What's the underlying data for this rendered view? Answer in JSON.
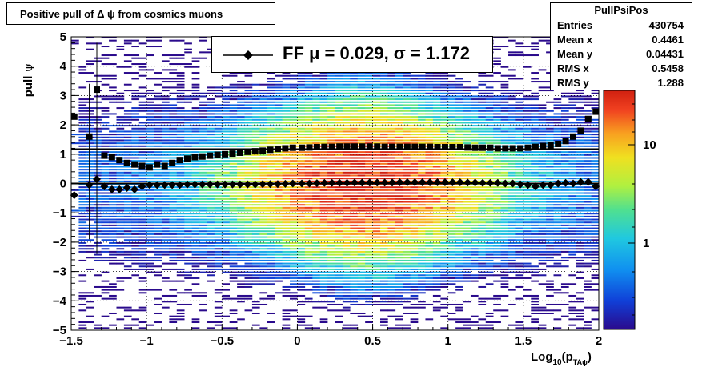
{
  "title": "Positive pull of Δ ψ from cosmics muons",
  "stats": {
    "name": "PullPsiPos",
    "rows": [
      {
        "label": "Entries",
        "value": "430754"
      },
      {
        "label": "Mean x",
        "value": "0.4461"
      },
      {
        "label": "Mean y",
        "value": "0.04431"
      },
      {
        "label": "RMS x",
        "value": "0.5458"
      },
      {
        "label": "RMS y",
        "value": "1.288"
      }
    ]
  },
  "legend": {
    "text": "FF μ =  0.029, σ =   1.172"
  },
  "chart_data": {
    "type": "heatmap",
    "title": "Positive pull of Δ ψ from cosmics muons",
    "xlabel": "Log10(pTAψ)",
    "ylabel": "pull ψ",
    "xlim": [
      -1.5,
      2.0
    ],
    "ylim": [
      -5,
      5
    ],
    "x_ticks": [
      "−1.5",
      "−1",
      "−0.5",
      "0",
      "0.5",
      "1",
      "1.5",
      "2"
    ],
    "y_ticks": [
      "5",
      "4",
      "3",
      "2",
      "1",
      "0",
      "−1",
      "−2",
      "−3",
      "−4",
      "−5"
    ],
    "colorbar_ticks": [
      "10",
      "1"
    ],
    "colorbar_scale": "log",
    "grid": true,
    "series": [
      {
        "marker": "diamond",
        "x": [
          -1.48,
          -1.38,
          -1.33,
          -1.28,
          -1.23,
          -1.18,
          -1.13,
          -1.08,
          -1.03,
          -0.98,
          -0.93,
          -0.88,
          -0.83,
          -0.78,
          -0.73,
          -0.68,
          -0.63,
          -0.58,
          -0.53,
          -0.48,
          -0.43,
          -0.38,
          -0.33,
          -0.28,
          -0.23,
          -0.18,
          -0.13,
          -0.08,
          -0.03,
          0.03,
          0.08,
          0.13,
          0.18,
          0.23,
          0.28,
          0.33,
          0.38,
          0.43,
          0.48,
          0.53,
          0.58,
          0.63,
          0.68,
          0.73,
          0.78,
          0.83,
          0.88,
          0.93,
          0.98,
          1.03,
          1.08,
          1.13,
          1.18,
          1.23,
          1.28,
          1.33,
          1.38,
          1.43,
          1.48,
          1.53,
          1.58,
          1.63,
          1.68,
          1.73,
          1.78,
          1.83,
          1.88,
          1.93,
          1.98
        ],
        "y": [
          -0.4,
          -0.05,
          0.15,
          -0.1,
          -0.2,
          -0.2,
          -0.15,
          -0.2,
          -0.1,
          -0.05,
          -0.05,
          -0.05,
          -0.05,
          -0.05,
          -0.03,
          -0.03,
          -0.03,
          -0.03,
          -0.03,
          -0.03,
          -0.03,
          -0.03,
          -0.03,
          -0.03,
          -0.02,
          -0.02,
          -0.02,
          -0.01,
          0.0,
          0.0,
          0.0,
          0.01,
          0.02,
          0.02,
          0.02,
          0.02,
          0.03,
          0.03,
          0.03,
          0.03,
          0.03,
          0.03,
          0.04,
          0.04,
          0.04,
          0.04,
          0.04,
          0.04,
          0.04,
          0.04,
          0.04,
          0.03,
          0.03,
          0.02,
          0.02,
          0.02,
          0.0,
          0.0,
          -0.03,
          -0.05,
          -0.1,
          -0.05,
          -0.05,
          0.0,
          0.02,
          0.0,
          0.05,
          0.05,
          -0.1
        ]
      },
      {
        "marker": "square",
        "x": [
          -1.48,
          -1.38,
          -1.33,
          -1.28,
          -1.23,
          -1.18,
          -1.13,
          -1.08,
          -1.03,
          -0.98,
          -0.93,
          -0.88,
          -0.83,
          -0.78,
          -0.73,
          -0.68,
          -0.63,
          -0.58,
          -0.53,
          -0.48,
          -0.43,
          -0.38,
          -0.33,
          -0.28,
          -0.23,
          -0.18,
          -0.13,
          -0.08,
          -0.03,
          0.03,
          0.08,
          0.13,
          0.18,
          0.23,
          0.28,
          0.33,
          0.38,
          0.43,
          0.48,
          0.53,
          0.58,
          0.63,
          0.68,
          0.73,
          0.78,
          0.83,
          0.88,
          0.93,
          0.98,
          1.03,
          1.08,
          1.13,
          1.18,
          1.23,
          1.28,
          1.33,
          1.38,
          1.43,
          1.48,
          1.53,
          1.58,
          1.63,
          1.68,
          1.73,
          1.78,
          1.83,
          1.88,
          1.93,
          1.98
        ],
        "y": [
          2.28,
          1.6,
          3.2,
          0.95,
          0.9,
          0.8,
          0.7,
          0.65,
          0.6,
          0.55,
          0.65,
          0.6,
          0.7,
          0.8,
          0.85,
          0.9,
          0.92,
          0.95,
          0.98,
          1.0,
          1.02,
          1.05,
          1.08,
          1.1,
          1.12,
          1.15,
          1.18,
          1.2,
          1.22,
          1.22,
          1.23,
          1.24,
          1.25,
          1.25,
          1.26,
          1.26,
          1.26,
          1.26,
          1.26,
          1.26,
          1.25,
          1.25,
          1.25,
          1.25,
          1.25,
          1.25,
          1.25,
          1.24,
          1.24,
          1.24,
          1.24,
          1.23,
          1.22,
          1.22,
          1.22,
          1.2,
          1.2,
          1.2,
          1.2,
          1.22,
          1.25,
          1.28,
          1.3,
          1.35,
          1.45,
          1.6,
          1.8,
          2.2,
          2.45
        ]
      }
    ],
    "reference_lines": [
      0.0,
      1.17
    ]
  }
}
